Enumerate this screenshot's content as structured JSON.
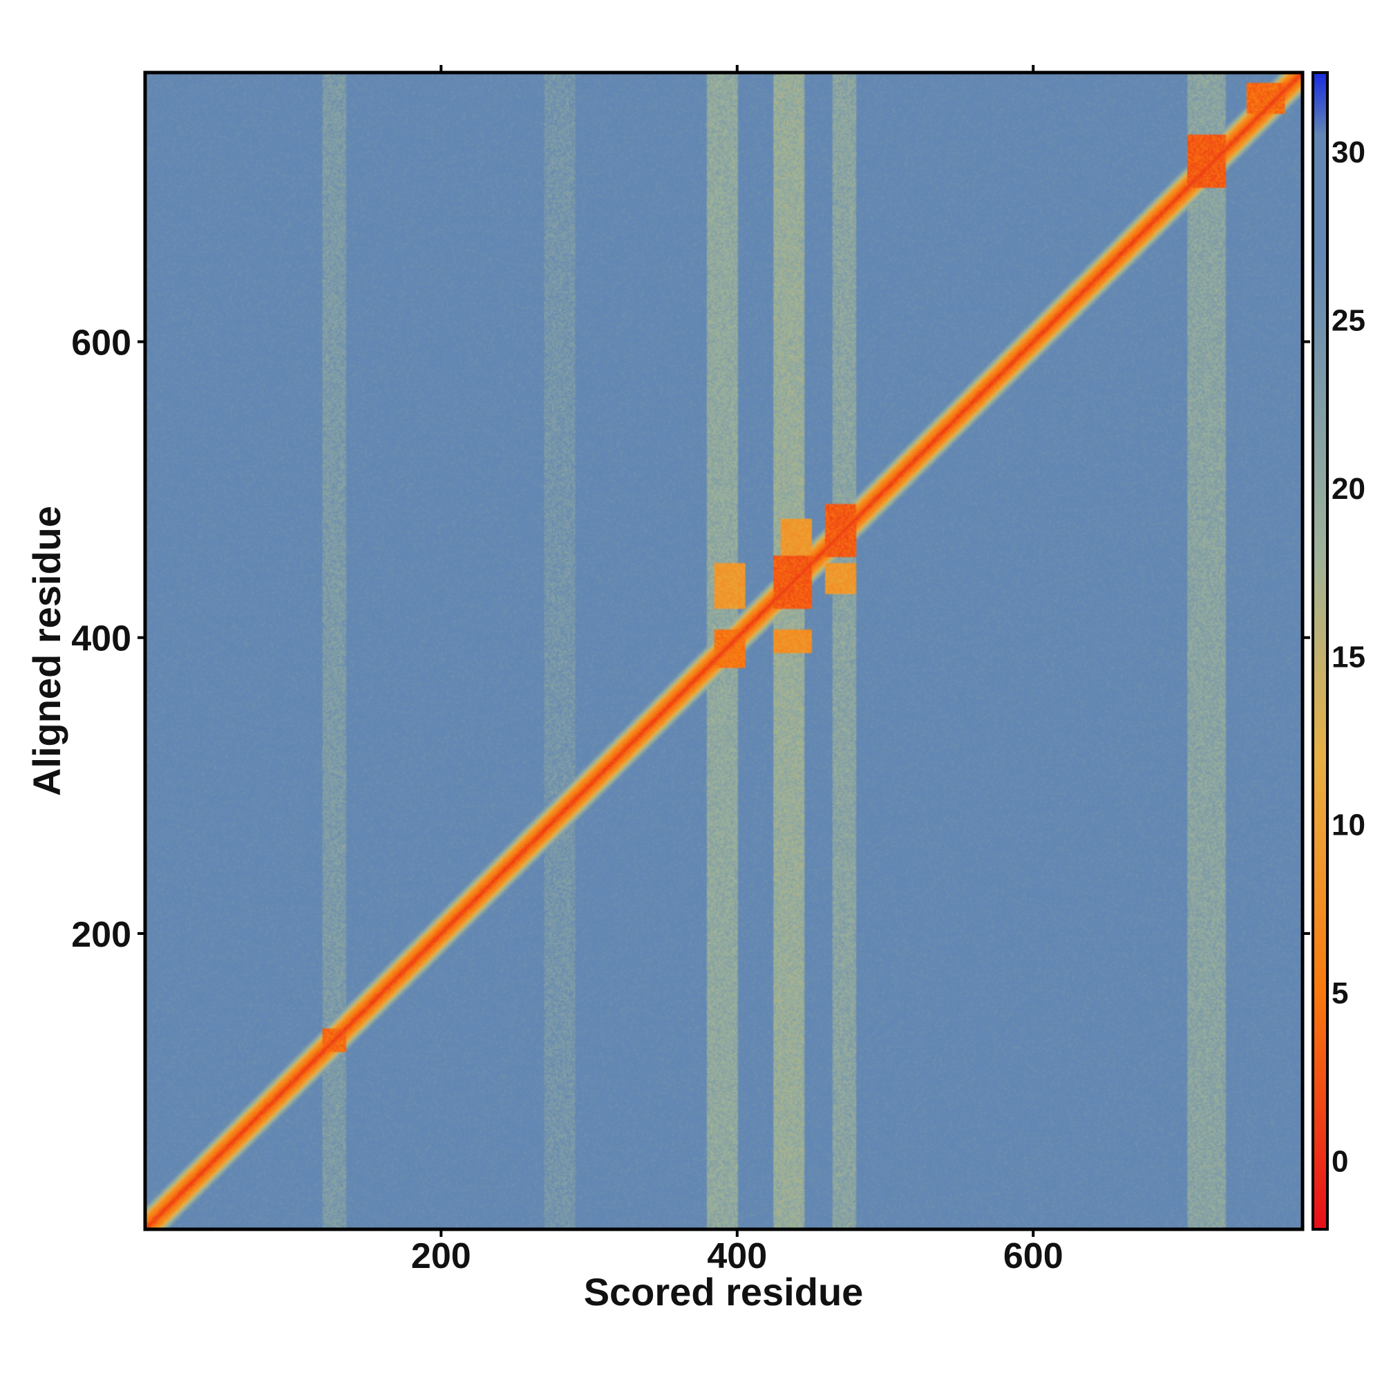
{
  "chart_data": {
    "type": "heatmap",
    "title": "",
    "xlabel": "Scored residue",
    "ylabel": "Aligned residue",
    "x_range": [
      1,
      781
    ],
    "y_range": [
      1,
      781
    ],
    "x_ticks": [
      200,
      400,
      600
    ],
    "y_ticks": [
      200,
      400,
      600
    ],
    "x_tick_labels": [
      "200",
      "400",
      "600"
    ],
    "y_tick_labels": [
      "200",
      "400",
      "600"
    ],
    "grid": false,
    "colorbar": {
      "range": [
        -2,
        32.3
      ],
      "ticks": [
        0,
        5,
        10,
        15,
        20,
        25,
        30
      ],
      "tick_labels": [
        "0",
        "5",
        "10",
        "15",
        "20",
        "25",
        "30"
      ],
      "colors": {
        "low": "#e8101a",
        "mid_low": "#f97a10",
        "mid": "#9fb39a",
        "high": "#6287b4",
        "max": "#1c2ee0"
      }
    },
    "background_value": 27,
    "diagonal_value": 1,
    "blocks": [
      {
        "x": [
          120,
          135
        ],
        "y": [
          120,
          135
        ],
        "value": 4
      },
      {
        "x": [
          385,
          405
        ],
        "y": [
          380,
          405
        ],
        "value": 5
      },
      {
        "x": [
          385,
          405
        ],
        "y": [
          420,
          450
        ],
        "value": 9
      },
      {
        "x": [
          425,
          450
        ],
        "y": [
          420,
          455
        ],
        "value": 3
      },
      {
        "x": [
          425,
          450
        ],
        "y": [
          390,
          405
        ],
        "value": 8
      },
      {
        "x": [
          430,
          450
        ],
        "y": [
          455,
          480
        ],
        "value": 9
      },
      {
        "x": [
          460,
          480
        ],
        "y": [
          455,
          490
        ],
        "value": 3
      },
      {
        "x": [
          460,
          480
        ],
        "y": [
          430,
          450
        ],
        "value": 9
      },
      {
        "x": [
          705,
          730
        ],
        "y": [
          705,
          740
        ],
        "value": 3
      },
      {
        "x": [
          745,
          770
        ],
        "y": [
          755,
          775
        ],
        "value": 4
      }
    ],
    "bands": [
      {
        "x": [
          380,
          400
        ],
        "value": 20
      },
      {
        "x": [
          425,
          445
        ],
        "value": 19
      },
      {
        "x": [
          465,
          480
        ],
        "value": 21
      },
      {
        "x": [
          705,
          730
        ],
        "value": 21
      },
      {
        "x": [
          120,
          135
        ],
        "value": 23
      },
      {
        "x": [
          270,
          290
        ],
        "value": 24
      }
    ]
  }
}
